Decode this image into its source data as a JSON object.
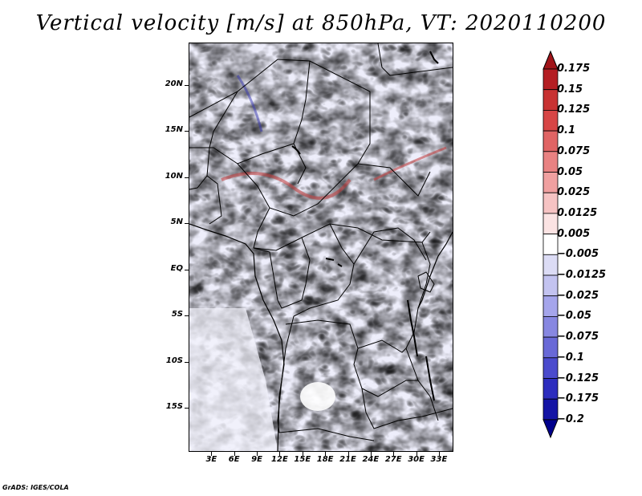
{
  "title": "Vertical velocity [m/s] at 850hPa, VT: 2020110200",
  "credit": "GrADS: IGES/COLA",
  "map": {
    "lat_labels": [
      {
        "text": "20N",
        "lat": 20
      },
      {
        "text": "15N",
        "lat": 15
      },
      {
        "text": "10N",
        "lat": 10
      },
      {
        "text": "5N",
        "lat": 5
      },
      {
        "text": "EQ",
        "lat": 0
      },
      {
        "text": "5S",
        "lat": -5
      },
      {
        "text": "10S",
        "lat": -10
      },
      {
        "text": "15S",
        "lat": -15
      }
    ],
    "lon_labels": [
      {
        "text": "3E",
        "lon": 3
      },
      {
        "text": "6E",
        "lon": 6
      },
      {
        "text": "9E",
        "lon": 9
      },
      {
        "text": "12E",
        "lon": 12
      },
      {
        "text": "15E",
        "lon": 15
      },
      {
        "text": "18E",
        "lon": 18
      },
      {
        "text": "21E",
        "lon": 21
      },
      {
        "text": "24E",
        "lon": 24
      },
      {
        "text": "27E",
        "lon": 27
      },
      {
        "text": "30E",
        "lon": 30
      },
      {
        "text": "33E",
        "lon": 33
      }
    ]
  },
  "colorbar": {
    "labels": [
      "0.175",
      "0.15",
      "0.125",
      "0.1",
      "0.075",
      "0.05",
      "0.025",
      "0.0125",
      "0.005",
      "−0.005",
      "−0.0125",
      "−0.025",
      "−0.05",
      "−0.075",
      "−0.1",
      "−0.125",
      "−0.175",
      "−0.2"
    ],
    "colors": [
      "#a01419",
      "#b41e23",
      "#c83232",
      "#d74646",
      "#e06464",
      "#e98282",
      "#f0a0a0",
      "#f6c3c3",
      "#fbe3e3",
      "#ffffff",
      "#dcdcf5",
      "#c3c3f0",
      "#a5a5eb",
      "#8787e1",
      "#6969d7",
      "#4b4bcd",
      "#2d2dbe",
      "#1414a5",
      "#00008c"
    ]
  }
}
